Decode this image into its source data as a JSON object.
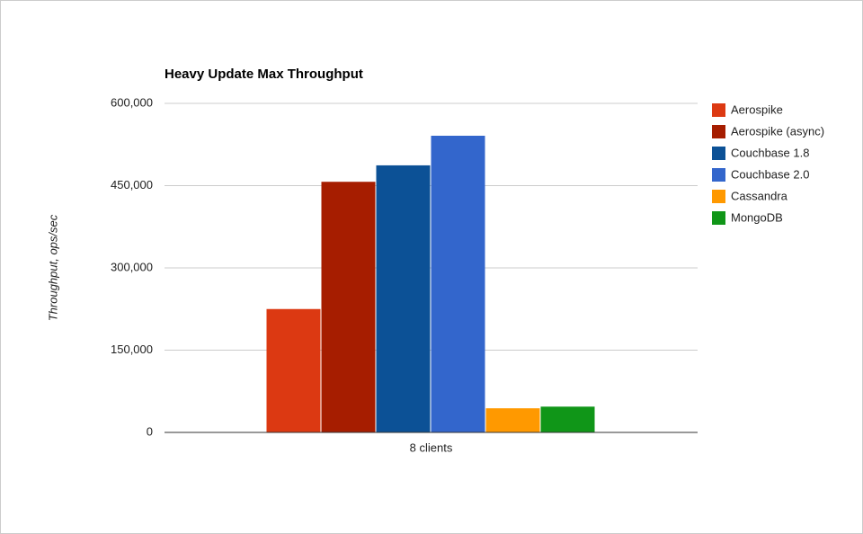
{
  "chart_data": {
    "type": "bar",
    "title": "Heavy Update Max Throughput",
    "y_label": "Throughput, ops/sec",
    "categories": [
      "8 clients"
    ],
    "series": [
      {
        "name": "Aerospike",
        "color": "#dc3912",
        "values": [
          225000
        ]
      },
      {
        "name": "Aerospike (async)",
        "color": "#a61d00",
        "values": [
          457000
        ]
      },
      {
        "name": "Couchbase 1.8",
        "color": "#0c5196",
        "values": [
          487000
        ]
      },
      {
        "name": "Couchbase 2.0",
        "color": "#3366cc",
        "values": [
          541000
        ]
      },
      {
        "name": "Cassandra",
        "color": "#ff9900",
        "values": [
          44000
        ]
      },
      {
        "name": "MongoDB",
        "color": "#109618",
        "values": [
          47000
        ]
      }
    ],
    "ylim": [
      0,
      600000
    ],
    "yticks": [
      0,
      {
        "value": 150000,
        "label": "150,000"
      },
      {
        "value": 300000,
        "label": "300,000"
      },
      {
        "value": 450000,
        "label": "450,000"
      },
      {
        "value": 600000,
        "label": "600,000"
      }
    ],
    "grid": true,
    "legend": "right"
  }
}
